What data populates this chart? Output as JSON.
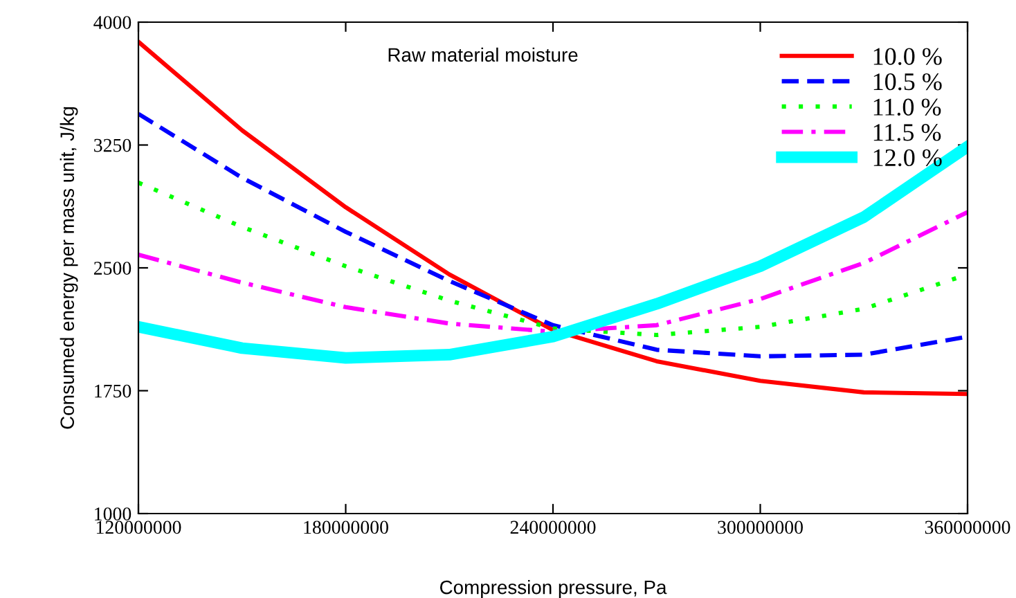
{
  "chart_data": {
    "type": "line",
    "xlabel": "Compression pressure, Pa",
    "ylabel": "Consumed energy per mass unit, J/kg",
    "legend_title": "Raw material moisture",
    "x": [
      120000000,
      150000000,
      180000000,
      210000000,
      240000000,
      270000000,
      300000000,
      330000000,
      360000000
    ],
    "series": [
      {
        "name": "10.0 %",
        "color": "#ff0000",
        "line_style": "solid",
        "values": [
          3880,
          3340,
          2870,
          2460,
          2120,
          1930,
          1810,
          1740,
          1730
        ]
      },
      {
        "name": "10.5 %",
        "color": "#0000ff",
        "line_style": "dashed",
        "values": [
          3440,
          3050,
          2720,
          2420,
          2150,
          2000,
          1960,
          1970,
          2080
        ]
      },
      {
        "name": "11.0 %",
        "color": "#00ff00",
        "line_style": "dotted",
        "values": [
          3020,
          2750,
          2510,
          2300,
          2130,
          2090,
          2140,
          2250,
          2460
        ]
      },
      {
        "name": "11.5 %",
        "color": "#ff00ff",
        "line_style": "dashdot",
        "values": [
          2580,
          2410,
          2260,
          2160,
          2110,
          2150,
          2310,
          2530,
          2840
        ]
      },
      {
        "name": "12.0 %",
        "color": "#00ffff",
        "line_style": "solid",
        "values": [
          2140,
          2010,
          1950,
          1970,
          2080,
          2280,
          2510,
          2810,
          3240
        ]
      }
    ],
    "xlim": [
      120000000,
      360000000
    ],
    "xticks": [
      120000000,
      180000000,
      240000000,
      300000000,
      360000000
    ],
    "ylim": [
      1000,
      4000
    ],
    "yticks": [
      1000,
      1750,
      2500,
      3250,
      4000
    ],
    "grid": false,
    "legend": "top right"
  }
}
